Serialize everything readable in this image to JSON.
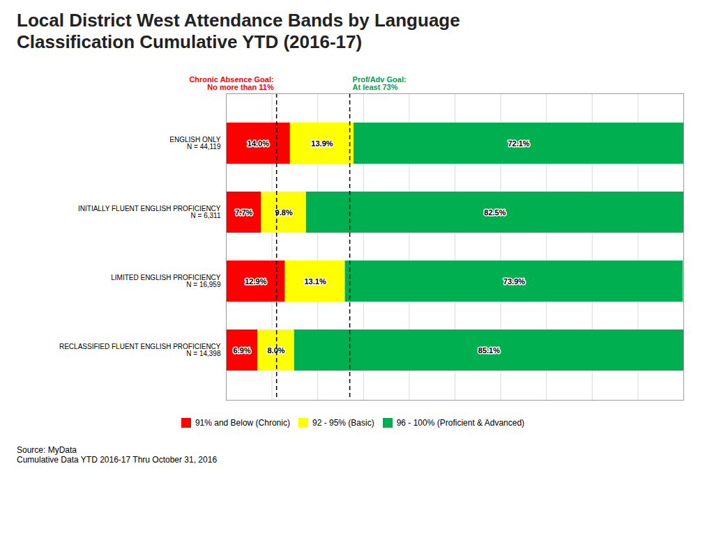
{
  "chart_data": {
    "type": "bar",
    "title": "Local District West Attendance Bands by Language\nClassification Cumulative YTD (2016-17)",
    "orientation": "horizontal",
    "stacked": true,
    "categories": [
      "ENGLISH ONLY",
      "INITIALLY FLUENT ENGLISH PROFICIENCY",
      "LIMITED ENGLISH PROFICIENCY",
      "RECLASSIFIED FLUENT ENGLISH PROFICIENCY"
    ],
    "n_labels": [
      "N = 44,119",
      "N = 6,311",
      "N = 16,959",
      "N = 14,398"
    ],
    "series": [
      {
        "name": "91% and Below (Chronic)",
        "color": "#FF0000",
        "values": [
          14.0,
          7.7,
          12.9,
          6.9
        ],
        "value_labels": [
          "14.0%",
          "7.7%",
          "12.9%",
          "6.9%"
        ]
      },
      {
        "name": "92 - 95% (Basic)",
        "color": "#FFFF00",
        "values": [
          13.9,
          9.8,
          13.1,
          8.0
        ],
        "value_labels": [
          "13.9%",
          "9.8%",
          "13.1%",
          "8.0%"
        ]
      },
      {
        "name": "96 - 100% (Proficient & Advanced)",
        "color": "#00B050",
        "values": [
          72.1,
          82.5,
          73.9,
          85.1
        ],
        "value_labels": [
          "72.1%",
          "82.5%",
          "73.9%",
          "85.1%"
        ]
      }
    ],
    "xlim": [
      0,
      100
    ],
    "xticks": [
      0,
      10,
      20,
      30,
      40,
      50,
      60,
      70,
      80,
      90,
      100
    ],
    "grid": true,
    "tick_labels": "y",
    "data_labels": true,
    "legend": "bottom",
    "annotations": [
      {
        "text": "Chronic Absence Goal:\nNo more than 11%",
        "x": 11.0,
        "color": "#FF0000",
        "line_style": "dashed"
      },
      {
        "text": "Prof/Adv Goal:\nAt least 73%",
        "x": 27.0,
        "color": "#00A050",
        "line_style": "dashed"
      }
    ],
    "caption": "Source: MyData\nCumulative Data  YTD 2016-17 Thru October 31, 2016"
  }
}
